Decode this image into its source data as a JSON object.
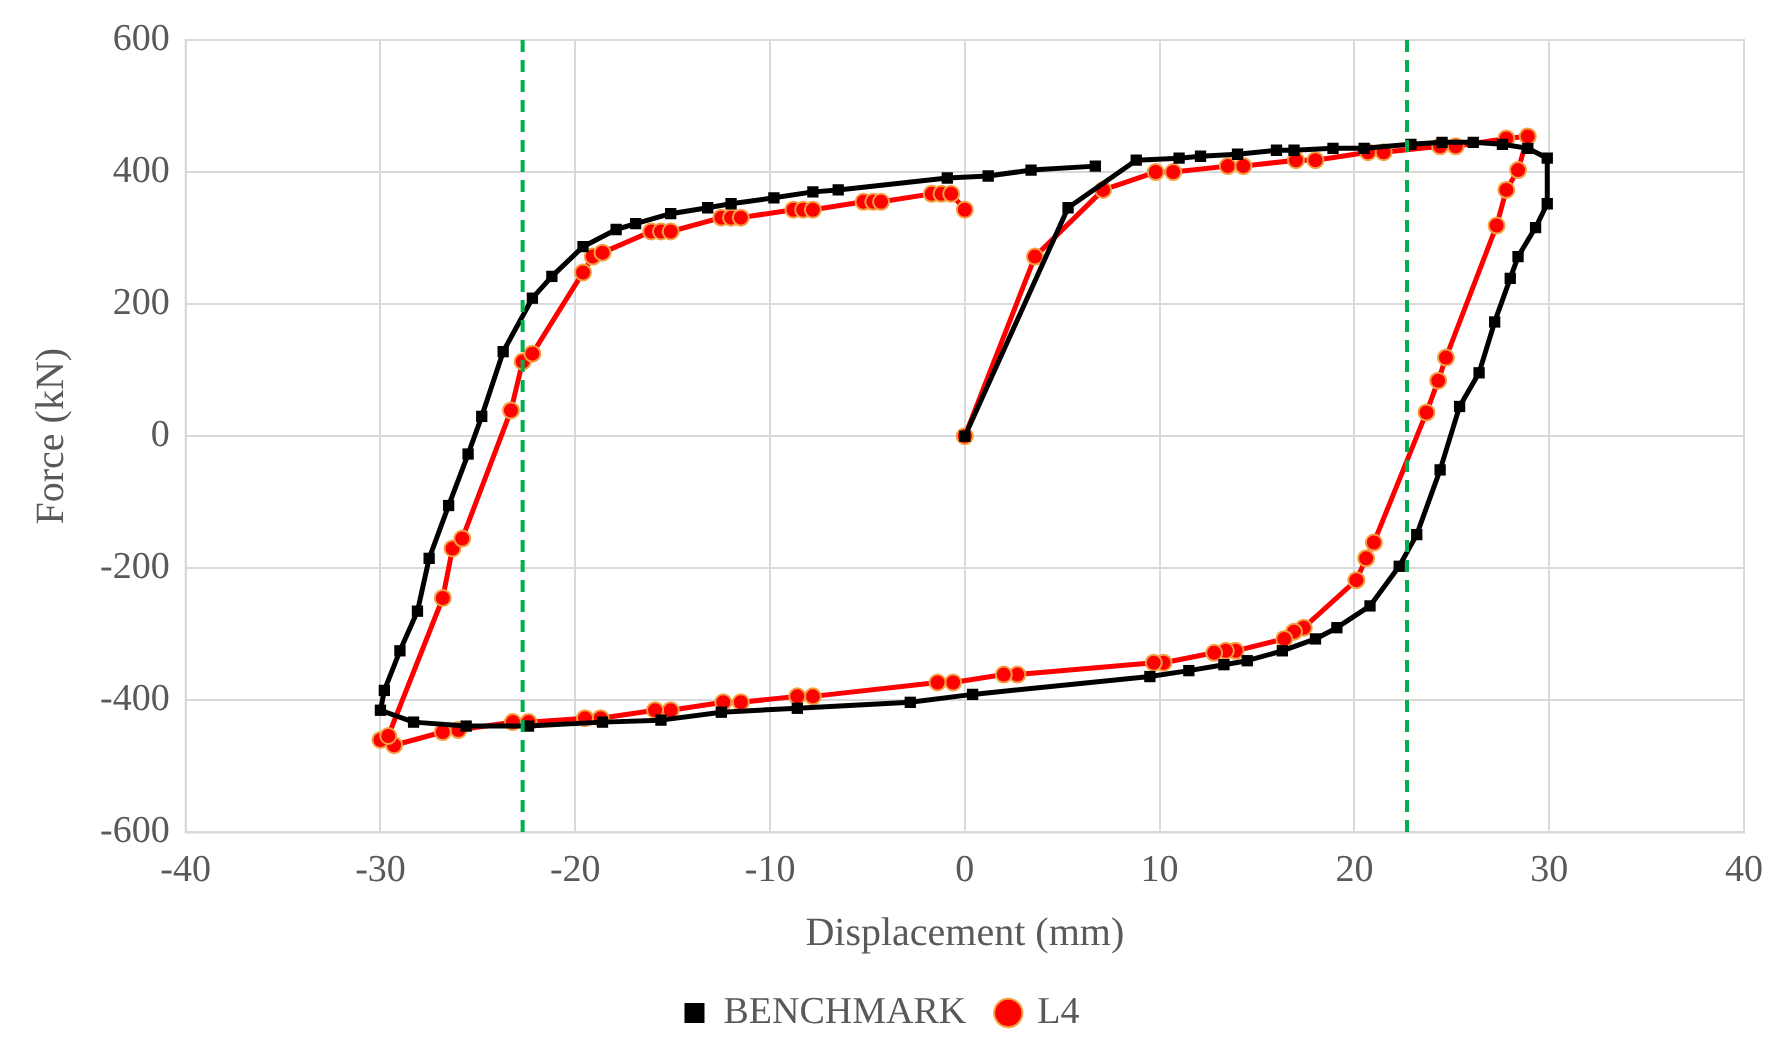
{
  "chart_data": {
    "type": "line",
    "xlabel": "Displacement (mm)",
    "ylabel": "Force (kN)",
    "xlim": [
      -40,
      40
    ],
    "xticks": [
      -40,
      -30,
      -20,
      -10,
      0,
      10,
      20,
      30,
      40
    ],
    "ylim": [
      -600,
      600
    ],
    "yticks": [
      -600,
      -400,
      -200,
      0,
      200,
      400,
      600
    ],
    "grid": true,
    "legend": "bottom",
    "line_style": "solid",
    "ref_lines": [
      {
        "axis": "x",
        "value": -22.7,
        "color": "#00b050",
        "line_style": "dashed"
      },
      {
        "axis": "x",
        "value": 22.7,
        "color": "#00b050",
        "line_style": "dashed"
      }
    ],
    "series": [
      {
        "name": "BENCHMARK",
        "color": "#000000",
        "marker": "square",
        "x": [
          0,
          5.3,
          8.8,
          11,
          12.1,
          14,
          16,
          16.9,
          18.9,
          20.5,
          22.9,
          24.5,
          26.1,
          27.6,
          28.9,
          29.9,
          29.9,
          29.3,
          28.4,
          28,
          27.2,
          26.4,
          25.4,
          24.4,
          23.2,
          22.3,
          20.8,
          19.1,
          18,
          16.3,
          14.5,
          13.3,
          11.5,
          9.5,
          0.4,
          -2.8,
          -8.6,
          -12.5,
          -15.6,
          -18.6,
          -22.4,
          -25.6,
          -28.3,
          -30,
          -29.8,
          -29,
          -28.1,
          -27.5,
          -26.5,
          -25.5,
          -24.8,
          -23.7,
          -22.2,
          -21.2,
          -19.6,
          -17.9,
          -16.9,
          -15.1,
          -13.2,
          -12,
          -9.8,
          -7.8,
          -6.5,
          -0.9,
          1.2,
          3.4,
          6.7
        ],
        "values": [
          0,
          346,
          418,
          421,
          424,
          427,
          433,
          433,
          436,
          436,
          442,
          445,
          445,
          442,
          436,
          421,
          352,
          316,
          272,
          239,
          173,
          96,
          45,
          -51,
          -149,
          -197,
          -257,
          -290,
          -307,
          -325,
          -340,
          -346,
          -355,
          -364,
          -391,
          -403,
          -412,
          -418,
          -430,
          -433,
          -439,
          -439,
          -433,
          -415,
          -385,
          -325,
          -265,
          -185,
          -105,
          -27,
          30,
          128,
          209,
          242,
          287,
          313,
          322,
          337,
          346,
          352,
          361,
          370,
          373,
          391,
          394,
          403,
          409
        ]
      },
      {
        "name": "L4",
        "color": "#ff0000",
        "marker": "circle",
        "x": [
          0,
          3.6,
          7.1,
          9.8,
          10.7,
          13.5,
          14.3,
          17,
          18,
          20.7,
          21.5,
          24.4,
          25.2,
          27.8,
          28.9,
          28.4,
          27.8,
          27.3,
          24.7,
          24.3,
          23.7,
          21,
          20.6,
          20.1,
          17.4,
          16.9,
          16.4,
          13.9,
          13.4,
          12.8,
          10.2,
          9.7,
          2.7,
          2,
          -0.6,
          -1.4,
          -7.8,
          -8.6,
          -11.5,
          -12.4,
          -15.1,
          -15.9,
          -18.7,
          -19.5,
          -22.4,
          -23.2,
          -26,
          -26.8,
          -29.3,
          -30,
          -29.6,
          -26.8,
          -26.3,
          -25.8,
          -23.3,
          -22.7,
          -22.2,
          -19.6,
          -19.1,
          -18.6,
          -16.1,
          -15.6,
          -15.1,
          -12.5,
          -12,
          -11.5,
          -8.8,
          -8.3,
          -7.8,
          -5.2,
          -4.7,
          -4.3,
          -1.7,
          -1.2,
          -0.7,
          0
        ],
        "values": [
          0,
          272,
          373,
          400,
          400,
          409,
          409,
          418,
          418,
          430,
          430,
          439,
          439,
          451,
          454,
          403,
          373,
          319,
          119,
          84,
          36,
          -161,
          -185,
          -218,
          -290,
          -296,
          -307,
          -325,
          -325,
          -328,
          -343,
          -343,
          -361,
          -361,
          -373,
          -373,
          -394,
          -394,
          -403,
          -403,
          -415,
          -415,
          -427,
          -427,
          -433,
          -433,
          -445,
          -448,
          -468,
          -460,
          -454,
          -245,
          -170,
          -155,
          39,
          113,
          125,
          248,
          272,
          278,
          310,
          310,
          310,
          331,
          331,
          331,
          343,
          343,
          343,
          355,
          355,
          355,
          367,
          367,
          367,
          343
        ]
      }
    ]
  }
}
